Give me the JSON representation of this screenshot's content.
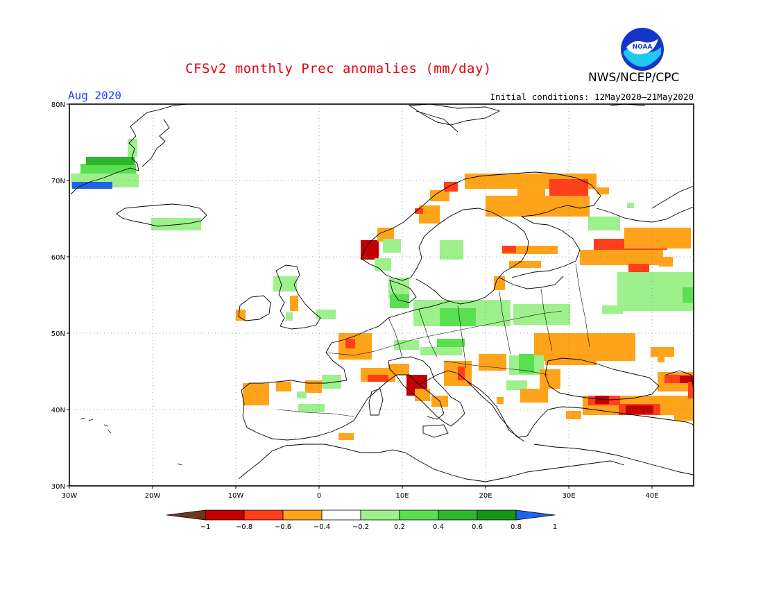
{
  "title": "CFSv2 monthly Prec anomalies (mm/day)",
  "agency": "NWS/NCEP/CPC",
  "valid_label": "Aug 2020",
  "init_label": "Initial conditions: 12May2020—21May2020",
  "logo_text": "NOAA",
  "map": {
    "lon_ticks": [
      "30W",
      "20W",
      "10W",
      "0",
      "10E",
      "20E",
      "30E",
      "40E"
    ],
    "lat_ticks": [
      "80N",
      "70N",
      "60N",
      "50N",
      "40N",
      "30N"
    ],
    "extent": {
      "lon": [
        -30,
        45
      ],
      "lat": [
        30,
        80
      ]
    }
  },
  "colorbar": {
    "ticks": [
      "−1",
      "−0.8",
      "−0.6",
      "−0.4",
      "−0.2",
      "0.2",
      "0.4",
      "0.6",
      "0.8",
      "1"
    ],
    "colors": [
      "#6e3a1e",
      "#c20000",
      "#ff3f1a",
      "#ffa31a",
      "#ffffff",
      "#9ef08c",
      "#58e050",
      "#2cb82c",
      "#149614",
      "#1f64e6"
    ]
  }
}
